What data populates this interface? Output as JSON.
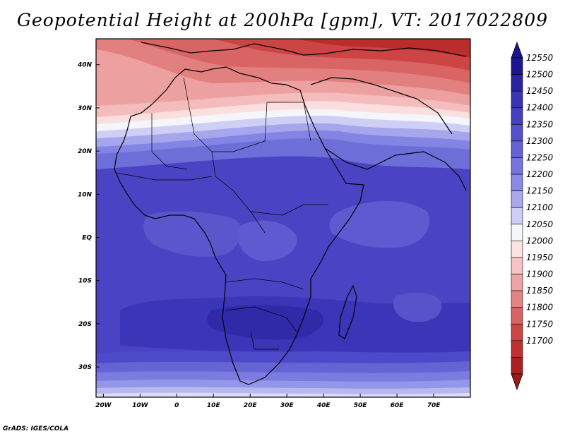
{
  "title": "Geopotential Height at 200hPa [gpm], VT: 2017022809",
  "credit": "GrADS: IGES/COLA",
  "map": {
    "region": "Africa",
    "variable": "Geopotential Height",
    "level": "200hPa",
    "units": "gpm",
    "valid_time": "2017022809",
    "lon_range": [
      -22,
      80
    ],
    "lat_range": [
      -37,
      46
    ],
    "lon_ticks": [
      {
        "value": -20,
        "label": "20W"
      },
      {
        "value": -10,
        "label": "10W"
      },
      {
        "value": 0,
        "label": "0"
      },
      {
        "value": 10,
        "label": "10E"
      },
      {
        "value": 20,
        "label": "20E"
      },
      {
        "value": 30,
        "label": "30E"
      },
      {
        "value": 40,
        "label": "40E"
      },
      {
        "value": 50,
        "label": "50E"
      },
      {
        "value": 60,
        "label": "60E"
      },
      {
        "value": 70,
        "label": "70E"
      }
    ],
    "lat_ticks": [
      {
        "value": 40,
        "label": "40N"
      },
      {
        "value": 30,
        "label": "30N"
      },
      {
        "value": 20,
        "label": "20N"
      },
      {
        "value": 10,
        "label": "10N"
      },
      {
        "value": 0,
        "label": "EQ"
      },
      {
        "value": -10,
        "label": "10S"
      },
      {
        "value": -20,
        "label": "20S"
      },
      {
        "value": -30,
        "label": "30S"
      }
    ]
  },
  "colorbar": {
    "labels": [
      "12550",
      "12500",
      "12450",
      "12400",
      "12350",
      "12300",
      "12250",
      "12200",
      "12150",
      "12100",
      "12050",
      "12000",
      "11950",
      "11900",
      "11850",
      "11800",
      "11750",
      "11700"
    ],
    "colors": [
      "#1e1390",
      "#2a24a3",
      "#3834b5",
      "#4540c2",
      "#5550cb",
      "#6562d4",
      "#7675de",
      "#8a8ae6",
      "#a8a8ee",
      "#cdcdf5",
      "#f6f6fd",
      "#fbe3e3",
      "#f6c4c4",
      "#eea4a4",
      "#e38383",
      "#d86363",
      "#cd4646",
      "#c03030",
      "#ab2020"
    ],
    "top_color": "#1e1390",
    "bottom_color": "#9a1a1a"
  }
}
